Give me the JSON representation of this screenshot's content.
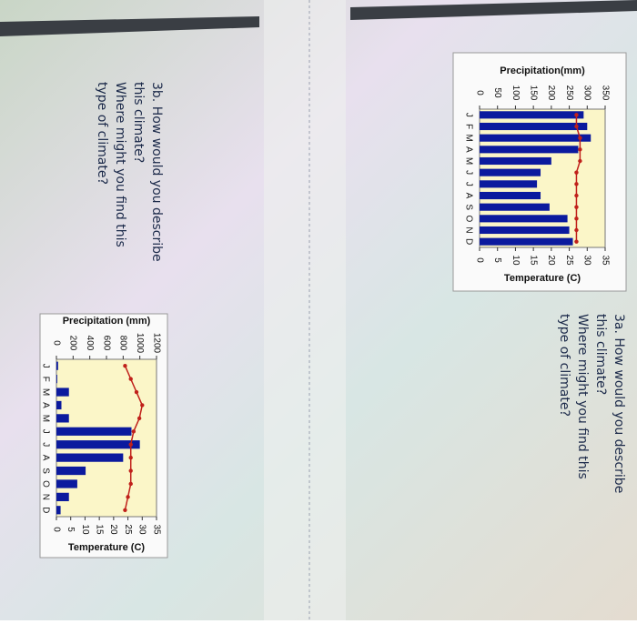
{
  "questions": [
    {
      "lines": [
        "3a. How would you describe",
        "this climate?",
        "Where might you find this",
        "type of climate?"
      ]
    },
    {
      "lines": [
        "3b. How would you describe",
        "this climate?",
        "Where might you find this",
        "type of climate?"
      ]
    }
  ],
  "chart_data": [
    {
      "type": "bar",
      "ylabel": "Precipitation(mm)",
      "y2label": "Temperature (C)",
      "categories": [
        "J",
        "F",
        "M",
        "A",
        "M",
        "J",
        "J",
        "A",
        "S",
        "O",
        "N",
        "D"
      ],
      "series": [
        {
          "type": "bar",
          "color": "#0b1a9e",
          "values": [
            290,
            300,
            310,
            275,
            200,
            170,
            160,
            170,
            195,
            245,
            250,
            260
          ]
        },
        {
          "type": "line",
          "axis": "y2",
          "color": "#c0201a",
          "values": [
            27,
            27,
            28,
            28,
            28,
            27,
            27,
            27,
            27,
            27,
            27,
            27
          ]
        }
      ],
      "ylim": [
        0,
        350
      ],
      "yticks": [
        0,
        50,
        100,
        150,
        200,
        250,
        300,
        350
      ],
      "y2lim": [
        0,
        35
      ],
      "y2ticks": [
        0,
        5,
        10,
        15,
        20,
        25,
        30,
        35
      ]
    },
    {
      "type": "bar",
      "ylabel": "Precipitation (mm)",
      "y2label": "Temperature (C)",
      "categories": [
        "J",
        "F",
        "M",
        "A",
        "M",
        "J",
        "J",
        "A",
        "S",
        "O",
        "N",
        "D"
      ],
      "series": [
        {
          "type": "bar",
          "color": "#0b1a9e",
          "values": [
            20,
            10,
            150,
            60,
            150,
            900,
            1000,
            800,
            350,
            250,
            150,
            50
          ]
        },
        {
          "type": "line",
          "axis": "y2",
          "color": "#c0201a",
          "values": [
            24,
            26,
            28,
            30,
            29,
            27,
            26,
            26,
            26,
            26,
            25,
            24
          ]
        }
      ],
      "ylim": [
        0,
        1200
      ],
      "yticks": [
        0,
        200,
        400,
        600,
        800,
        1000,
        1200
      ],
      "y2lim": [
        0,
        35
      ],
      "y2ticks": [
        0,
        5,
        10,
        15,
        20,
        25,
        30,
        35
      ]
    }
  ]
}
